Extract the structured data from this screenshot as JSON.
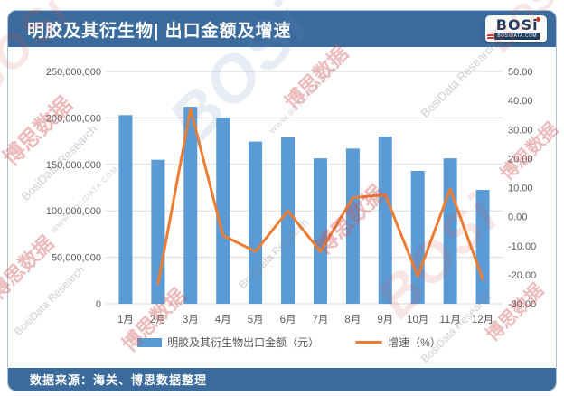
{
  "header": {
    "title": "明胶及其衍生物| 出口金额及增速",
    "logo": {
      "text": "BOSi",
      "subtext": "BOSIDATA.COM"
    }
  },
  "footer": {
    "text": "数据来源：海关、博思数据整理"
  },
  "watermark": {
    "cn": "博思数据",
    "en": "BosiData Research",
    "url": "WWW.BOSIDATA.COM",
    "logo": "BOSi"
  },
  "colors": {
    "header_bg": "#3A6B9C",
    "footer_bg": "#3A6B9C",
    "bar": "#5B9BD5",
    "line": "#ED7D31",
    "grid": "#D9D9D9",
    "axis_text": "#595959",
    "card_border": "#AEC2D6",
    "logo_navy": "#1D3B5C",
    "logo_red": "#C23B2E"
  },
  "chart_data": {
    "type": "bar+line combo",
    "categories": [
      "1月",
      "2月",
      "3月",
      "4月",
      "5月",
      "6月",
      "7月",
      "8月",
      "9月",
      "10月",
      "11月",
      "12月"
    ],
    "series": [
      {
        "name": "明胶及其衍生物出口金额（元）",
        "type": "bar",
        "axis": "left",
        "color": "#5B9BD5",
        "values": [
          203000000,
          155000000,
          212000000,
          200000000,
          174500000,
          179000000,
          156500000,
          167000000,
          180000000,
          143000000,
          156500000,
          122500000
        ]
      },
      {
        "name": "增速（%）",
        "type": "line",
        "axis": "right",
        "color": "#ED7D31",
        "values": [
          null,
          -23,
          37,
          -6.5,
          -12,
          2,
          -12,
          6.5,
          7.5,
          -20.5,
          9.5,
          -21.5
        ]
      }
    ],
    "left_axis": {
      "min": 0,
      "max": 250000000,
      "step": 50000000,
      "labels": [
        "0",
        "50,000,000",
        "100,000,000",
        "150,000,000",
        "200,000,000",
        "250,000,000"
      ]
    },
    "right_axis": {
      "min": -30,
      "max": 50,
      "step": 10,
      "labels": [
        "-30.00",
        "-20.00",
        "-10.00",
        "0.00",
        "10.00",
        "20.00",
        "30.00",
        "40.00",
        "50.00"
      ]
    },
    "grid": true,
    "legend_position": "bottom"
  }
}
